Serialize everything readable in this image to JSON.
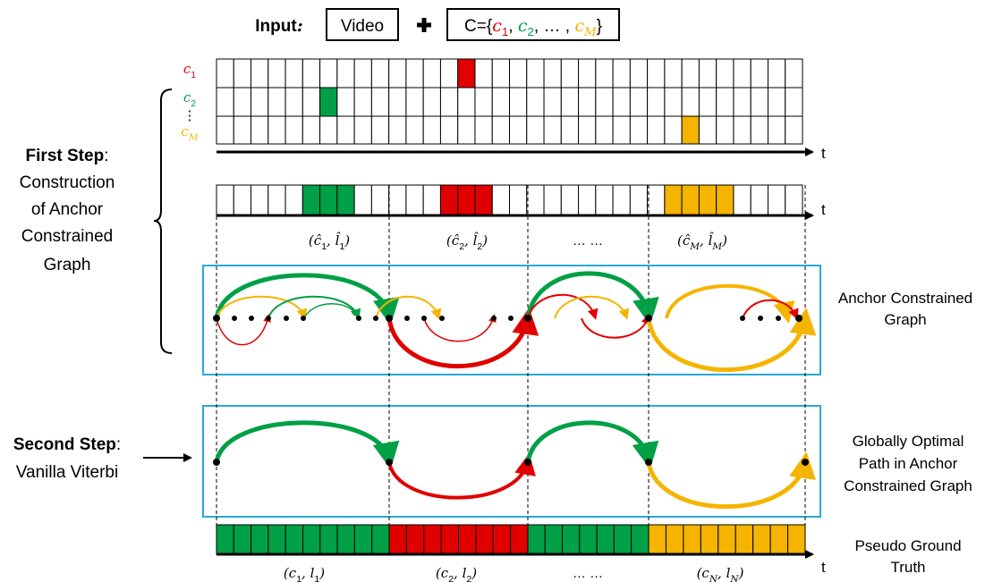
{
  "input": {
    "label": [
      {
        "text": "Input",
        "bold": true
      },
      {
        "text": ":",
        "bold": true,
        "math": true
      }
    ],
    "video": "Video",
    "set": [
      {
        "text": "C={"
      },
      {
        "text": "c",
        "math": true,
        "color": "#e00000"
      },
      {
        "text": "1",
        "sub": true,
        "color": "#e00000"
      },
      {
        "text": ", "
      },
      {
        "text": "c",
        "math": true,
        "color": "#00a046"
      },
      {
        "text": "2",
        "sub": true,
        "color": "#00a046"
      },
      {
        "text": ", … , "
      },
      {
        "text": "c",
        "math": true,
        "color": "#f5b400"
      },
      {
        "text": "M",
        "sub": true,
        "math": true,
        "color": "#f5b400"
      },
      {
        "text": "}"
      }
    ]
  },
  "class_rows": [
    [
      {
        "text": "c",
        "math": true,
        "color": "#e00000"
      },
      {
        "text": "1",
        "sub": true,
        "color": "#e00000"
      }
    ],
    [
      {
        "text": "c",
        "math": true,
        "color": "#00a046"
      },
      {
        "text": "2",
        "sub": true,
        "color": "#00a046"
      }
    ],
    [
      {
        "text": "⋮"
      }
    ],
    [
      {
        "text": "c",
        "math": true,
        "color": "#f5b400"
      },
      {
        "text": "M",
        "sub": true,
        "math": true,
        "color": "#f5b400"
      }
    ]
  ],
  "axis_label": "t",
  "first_step": {
    "title": [
      {
        "text": "First Step",
        "bold": true
      },
      {
        "text": ":"
      }
    ],
    "lines": [
      "Construction",
      "of Anchor",
      "Constrained",
      "Graph"
    ]
  },
  "anchor_segments": [
    [
      {
        "text": "(ĉ",
        "math": true
      },
      {
        "text": "1",
        "sub": true
      },
      {
        "text": ", l̂",
        "math": true
      },
      {
        "text": "1",
        "sub": true
      },
      {
        "text": ")",
        "math": true
      }
    ],
    [
      {
        "text": "(ĉ",
        "math": true
      },
      {
        "text": "2",
        "sub": true
      },
      {
        "text": ", l̂",
        "math": true
      },
      {
        "text": "2",
        "sub": true
      },
      {
        "text": ")",
        "math": true
      }
    ],
    [
      {
        "text": "… …"
      }
    ],
    [
      {
        "text": "(ĉ",
        "math": true
      },
      {
        "text": "M",
        "sub": true,
        "math": true
      },
      {
        "text": ", l̂",
        "math": true
      },
      {
        "text": "M",
        "sub": true,
        "math": true
      },
      {
        "text": ")",
        "math": true
      }
    ]
  ],
  "anchor_graph": [
    "Anchor Constrained",
    "Graph"
  ],
  "second_step": {
    "title": [
      {
        "text": "Second Step",
        "bold": true
      },
      {
        "text": ":"
      }
    ],
    "lines": [
      "Vanilla Viterbi"
    ]
  },
  "optimal_path": [
    "Globally Optimal",
    "Path in Anchor",
    "Constrained Graph"
  ],
  "pseudo_gt": [
    "Pseudo Ground",
    "Truth"
  ],
  "pseudo_segments": [
    [
      {
        "text": "(c",
        "math": true
      },
      {
        "text": "1",
        "sub": true
      },
      {
        "text": ", l",
        "math": true
      },
      {
        "text": "1",
        "sub": true
      },
      {
        "text": ")",
        "math": true
      }
    ],
    [
      {
        "text": "(c",
        "math": true
      },
      {
        "text": "2",
        "sub": true
      },
      {
        "text": ", l",
        "math": true
      },
      {
        "text": "2",
        "sub": true
      },
      {
        "text": ")",
        "math": true
      }
    ],
    [
      {
        "text": "… …"
      }
    ],
    [
      {
        "text": "(c",
        "math": true
      },
      {
        "text": "N",
        "sub": true,
        "math": true
      },
      {
        "text": ", l",
        "math": true
      },
      {
        "text": "N",
        "sub": true,
        "math": true
      },
      {
        "text": ")",
        "math": true
      }
    ]
  ]
}
